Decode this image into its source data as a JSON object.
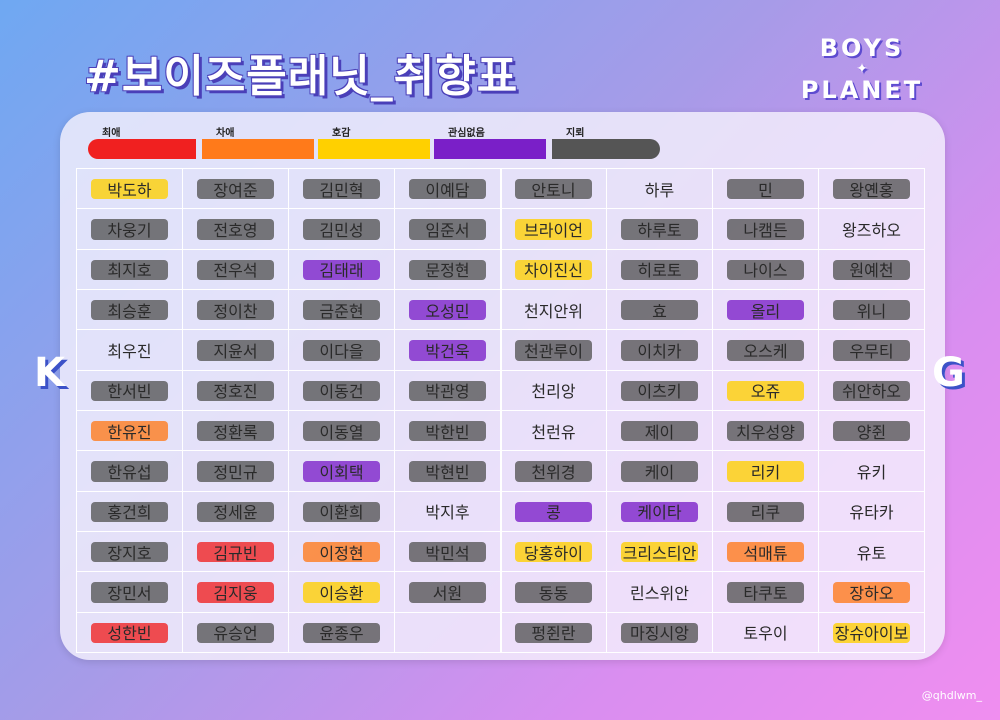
{
  "title": "#보이즈플래닛_취향표",
  "logo": {
    "line1": "BOYS",
    "star": "✦",
    "line2": "PLANET"
  },
  "side_labels": {
    "left": "K",
    "right": "G"
  },
  "credit": "@qhdlwm_",
  "colors": {
    "red": "#f02020",
    "orange": "#ff7a1a",
    "yellow": "#ffd000",
    "purple": "#7a1fc8",
    "gray": "#555555"
  },
  "legend": [
    {
      "label": "최애",
      "color": "red"
    },
    {
      "label": "차애",
      "color": "orange"
    },
    {
      "label": "호감",
      "color": "yellow"
    },
    {
      "label": "관심없음",
      "color": "purple"
    },
    {
      "label": "지뢰",
      "color": "gray"
    }
  ],
  "grid": [
    [
      {
        "n": "박도하",
        "c": "yellow"
      },
      {
        "n": "장여준",
        "c": "gray"
      },
      {
        "n": "김민혁",
        "c": "gray"
      },
      {
        "n": "이예담",
        "c": "gray"
      },
      {
        "n": "안토니",
        "c": "gray"
      },
      {
        "n": "하루",
        "c": ""
      },
      {
        "n": "민",
        "c": "gray"
      },
      {
        "n": "왕옌홍",
        "c": "gray"
      }
    ],
    [
      {
        "n": "차웅기",
        "c": "gray"
      },
      {
        "n": "전호영",
        "c": "gray"
      },
      {
        "n": "김민성",
        "c": "gray"
      },
      {
        "n": "임준서",
        "c": "gray"
      },
      {
        "n": "브라이언",
        "c": "yellow"
      },
      {
        "n": "하루토",
        "c": "gray"
      },
      {
        "n": "나캠든",
        "c": "gray"
      },
      {
        "n": "왕즈하오",
        "c": ""
      }
    ],
    [
      {
        "n": "최지호",
        "c": "gray"
      },
      {
        "n": "전우석",
        "c": "gray"
      },
      {
        "n": "김태래",
        "c": "purple"
      },
      {
        "n": "문정현",
        "c": "gray"
      },
      {
        "n": "차이진신",
        "c": "yellow"
      },
      {
        "n": "히로토",
        "c": "gray"
      },
      {
        "n": "나이스",
        "c": "gray"
      },
      {
        "n": "원예천",
        "c": "gray"
      }
    ],
    [
      {
        "n": "최승훈",
        "c": "gray"
      },
      {
        "n": "정이찬",
        "c": "gray"
      },
      {
        "n": "금준현",
        "c": "gray"
      },
      {
        "n": "오성민",
        "c": "purple"
      },
      {
        "n": "천지안위",
        "c": ""
      },
      {
        "n": "효",
        "c": "gray"
      },
      {
        "n": "올리",
        "c": "purple"
      },
      {
        "n": "위니",
        "c": "gray"
      }
    ],
    [
      {
        "n": "최우진",
        "c": ""
      },
      {
        "n": "지윤서",
        "c": "gray"
      },
      {
        "n": "이다을",
        "c": "gray"
      },
      {
        "n": "박건욱",
        "c": "purple"
      },
      {
        "n": "천관루이",
        "c": "gray"
      },
      {
        "n": "이치카",
        "c": "gray"
      },
      {
        "n": "오스케",
        "c": "gray"
      },
      {
        "n": "우무티",
        "c": "gray"
      }
    ],
    [
      {
        "n": "한서빈",
        "c": "gray"
      },
      {
        "n": "정호진",
        "c": "gray"
      },
      {
        "n": "이동건",
        "c": "gray"
      },
      {
        "n": "박관영",
        "c": "gray"
      },
      {
        "n": "천리앙",
        "c": ""
      },
      {
        "n": "이츠키",
        "c": "gray"
      },
      {
        "n": "오쥬",
        "c": "yellow"
      },
      {
        "n": "쉬안하오",
        "c": "gray"
      }
    ],
    [
      {
        "n": "한유진",
        "c": "orange"
      },
      {
        "n": "정환록",
        "c": "gray"
      },
      {
        "n": "이동열",
        "c": "gray"
      },
      {
        "n": "박한빈",
        "c": "gray"
      },
      {
        "n": "천런유",
        "c": ""
      },
      {
        "n": "제이",
        "c": "gray"
      },
      {
        "n": "치우성양",
        "c": "gray"
      },
      {
        "n": "양쥔",
        "c": "gray"
      }
    ],
    [
      {
        "n": "한유섭",
        "c": "gray"
      },
      {
        "n": "정민규",
        "c": "gray"
      },
      {
        "n": "이회택",
        "c": "purple"
      },
      {
        "n": "박현빈",
        "c": "gray"
      },
      {
        "n": "천위경",
        "c": "gray"
      },
      {
        "n": "케이",
        "c": "gray"
      },
      {
        "n": "리키",
        "c": "yellow"
      },
      {
        "n": "유키",
        "c": ""
      }
    ],
    [
      {
        "n": "홍건희",
        "c": "gray"
      },
      {
        "n": "정세윤",
        "c": "gray"
      },
      {
        "n": "이환희",
        "c": "gray"
      },
      {
        "n": "박지후",
        "c": ""
      },
      {
        "n": "콩",
        "c": "purple"
      },
      {
        "n": "케이타",
        "c": "purple"
      },
      {
        "n": "리쿠",
        "c": "gray"
      },
      {
        "n": "유타카",
        "c": ""
      }
    ],
    [
      {
        "n": "장지호",
        "c": "gray"
      },
      {
        "n": "김규빈",
        "c": "red"
      },
      {
        "n": "이정현",
        "c": "orange"
      },
      {
        "n": "박민석",
        "c": "gray"
      },
      {
        "n": "당홍하이",
        "c": "yellow"
      },
      {
        "n": "크리스티안",
        "c": "yellow"
      },
      {
        "n": "석매튜",
        "c": "orange"
      },
      {
        "n": "유토",
        "c": ""
      }
    ],
    [
      {
        "n": "장민서",
        "c": "gray"
      },
      {
        "n": "김지웅",
        "c": "red"
      },
      {
        "n": "이승환",
        "c": "yellow"
      },
      {
        "n": "서원",
        "c": "gray"
      },
      {
        "n": "동동",
        "c": "gray"
      },
      {
        "n": "린스위안",
        "c": ""
      },
      {
        "n": "타쿠토",
        "c": "gray"
      },
      {
        "n": "장하오",
        "c": "orange"
      }
    ],
    [
      {
        "n": "성한빈",
        "c": "red"
      },
      {
        "n": "유승언",
        "c": "gray"
      },
      {
        "n": "윤종우",
        "c": "gray"
      },
      {
        "n": "",
        "c": ""
      },
      {
        "n": "펑쥔란",
        "c": "gray"
      },
      {
        "n": "마징시앙",
        "c": "gray"
      },
      {
        "n": "토우이",
        "c": ""
      },
      {
        "n": "장슈아이보",
        "c": "yellow"
      }
    ]
  ]
}
